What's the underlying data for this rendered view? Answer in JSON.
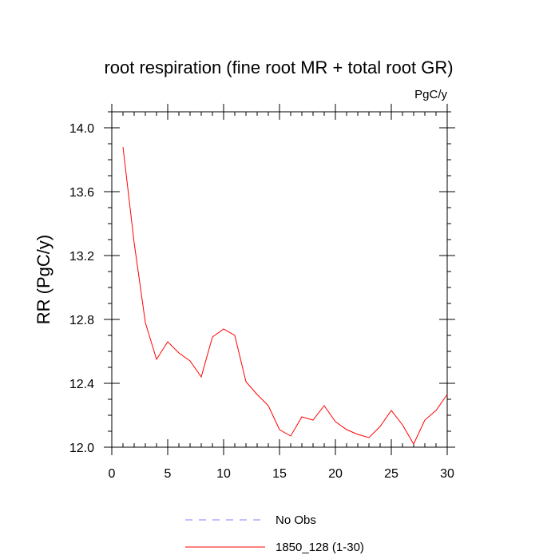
{
  "chart_data": {
    "type": "line",
    "title": "root respiration (fine root MR + total root GR)",
    "units": "PgC/y",
    "ylabel": "RR  (PgC/y)",
    "xlabel": "",
    "xlim": [
      0,
      30
    ],
    "ylim": [
      12.0,
      14.1
    ],
    "xticks": [
      0,
      5,
      10,
      15,
      20,
      25,
      30
    ],
    "xtick_labels": [
      "0",
      "5",
      "10",
      "15",
      "20",
      "25",
      "30"
    ],
    "yticks": [
      12.0,
      12.4,
      12.8,
      13.2,
      13.6,
      14.0
    ],
    "ytick_labels": [
      "12.0",
      "12.4",
      "12.8",
      "13.2",
      "13.6",
      "14.0"
    ],
    "grid": false,
    "series": [
      {
        "name": "1850_128 (1-30)",
        "color": "#ff0000",
        "style": "solid",
        "x": [
          1,
          2,
          3,
          4,
          5,
          6,
          7,
          8,
          9,
          10,
          11,
          12,
          13,
          14,
          15,
          16,
          17,
          18,
          19,
          20,
          21,
          22,
          23,
          24,
          25,
          26,
          27,
          28,
          29,
          30
        ],
        "values": [
          13.88,
          13.28,
          12.78,
          12.55,
          12.66,
          12.59,
          12.54,
          12.44,
          12.69,
          12.74,
          12.7,
          12.41,
          12.33,
          12.26,
          12.11,
          12.07,
          12.19,
          12.17,
          12.26,
          12.16,
          12.11,
          12.08,
          12.06,
          12.13,
          12.23,
          12.14,
          12.02,
          12.17,
          12.23,
          12.33
        ]
      }
    ],
    "legend": [
      {
        "label": "No Obs",
        "color": "#8080ff",
        "style": "dashed"
      },
      {
        "label": "1850_128 (1-30)",
        "color": "#ff0000",
        "style": "solid"
      }
    ],
    "legend_position": "bottom-center"
  }
}
